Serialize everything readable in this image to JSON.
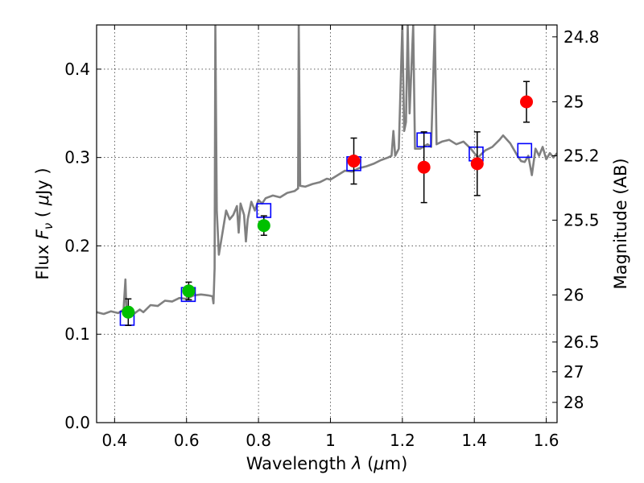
{
  "chart_data": {
    "type": "scatter",
    "xlabel": "Wavelength  λ (μm)",
    "ylabel": "Flux  F_ν  ( μJy )",
    "ylabel_parts": {
      "pre": "Flux  ",
      "sym": "F",
      "sub": "ν",
      "mid": "  ( ",
      "mu": "μ",
      "post": "Jy )"
    },
    "xlabel_parts": {
      "pre": "Wavelength  ",
      "sym": "λ",
      "mid": " (",
      "mu": "μ",
      "post": "m)"
    },
    "y2label": "Magnitude (AB)",
    "xlim": [
      0.35,
      1.63
    ],
    "ylim": [
      0.0,
      0.45
    ],
    "grid": true,
    "x_ticks": [
      {
        "value": 0.4,
        "label": "0.4"
      },
      {
        "value": 0.6,
        "label": "0.6"
      },
      {
        "value": 0.8,
        "label": "0.8"
      },
      {
        "value": 1.0,
        "label": "1"
      },
      {
        "value": 1.2,
        "label": "1.2"
      },
      {
        "value": 1.4,
        "label": "1.4"
      },
      {
        "value": 1.6,
        "label": "1.6"
      }
    ],
    "y_ticks": [
      {
        "value": 0.0,
        "label": "0.0"
      },
      {
        "value": 0.1,
        "label": "0.1"
      },
      {
        "value": 0.2,
        "label": "0.2"
      },
      {
        "value": 0.3,
        "label": "0.3"
      },
      {
        "value": 0.4,
        "label": "0.4"
      }
    ],
    "y2_ticks": [
      {
        "mag": 24.8,
        "label": "24.8"
      },
      {
        "mag": 25.0,
        "label": "25"
      },
      {
        "mag": 25.2,
        "label": "25.2"
      },
      {
        "mag": 25.5,
        "label": "25.5"
      },
      {
        "mag": 26.0,
        "label": "26"
      },
      {
        "mag": 26.5,
        "label": "26.5"
      },
      {
        "mag": 27.0,
        "label": "27"
      },
      {
        "mag": 28.0,
        "label": "28"
      }
    ],
    "series": [
      {
        "kind": "line",
        "color": "#808080",
        "points": [
          [
            0.35,
            0.125
          ],
          [
            0.37,
            0.123
          ],
          [
            0.39,
            0.126
          ],
          [
            0.41,
            0.124
          ],
          [
            0.425,
            0.128
          ],
          [
            0.43,
            0.162
          ],
          [
            0.433,
            0.126
          ],
          [
            0.45,
            0.122
          ],
          [
            0.47,
            0.128
          ],
          [
            0.48,
            0.125
          ],
          [
            0.5,
            0.133
          ],
          [
            0.52,
            0.132
          ],
          [
            0.54,
            0.138
          ],
          [
            0.56,
            0.137
          ],
          [
            0.58,
            0.141
          ],
          [
            0.6,
            0.14
          ],
          [
            0.62,
            0.144
          ],
          [
            0.64,
            0.145
          ],
          [
            0.66,
            0.144
          ],
          [
            0.672,
            0.143
          ],
          [
            0.675,
            0.135
          ],
          [
            0.678,
            0.175
          ],
          [
            0.68,
            0.45
          ],
          [
            0.684,
            0.24
          ],
          [
            0.69,
            0.19
          ],
          [
            0.7,
            0.215
          ],
          [
            0.71,
            0.24
          ],
          [
            0.72,
            0.23
          ],
          [
            0.73,
            0.235
          ],
          [
            0.74,
            0.245
          ],
          [
            0.745,
            0.215
          ],
          [
            0.75,
            0.248
          ],
          [
            0.76,
            0.235
          ],
          [
            0.765,
            0.205
          ],
          [
            0.77,
            0.23
          ],
          [
            0.78,
            0.25
          ],
          [
            0.79,
            0.24
          ],
          [
            0.8,
            0.252
          ],
          [
            0.81,
            0.248
          ],
          [
            0.82,
            0.254
          ],
          [
            0.84,
            0.257
          ],
          [
            0.86,
            0.255
          ],
          [
            0.88,
            0.26
          ],
          [
            0.9,
            0.262
          ],
          [
            0.91,
            0.265
          ],
          [
            0.912,
            0.45
          ],
          [
            0.916,
            0.268
          ],
          [
            0.93,
            0.267
          ],
          [
            0.95,
            0.27
          ],
          [
            0.97,
            0.272
          ],
          [
            0.99,
            0.276
          ],
          [
            1.0,
            0.275
          ],
          [
            1.02,
            0.28
          ],
          [
            1.04,
            0.285
          ],
          [
            1.06,
            0.284
          ],
          [
            1.08,
            0.288
          ],
          [
            1.1,
            0.29
          ],
          [
            1.12,
            0.293
          ],
          [
            1.14,
            0.297
          ],
          [
            1.16,
            0.3
          ],
          [
            1.17,
            0.302
          ],
          [
            1.175,
            0.33
          ],
          [
            1.18,
            0.302
          ],
          [
            1.19,
            0.31
          ],
          [
            1.2,
            0.45
          ],
          [
            1.205,
            0.33
          ],
          [
            1.21,
            0.34
          ],
          [
            1.215,
            0.45
          ],
          [
            1.22,
            0.35
          ],
          [
            1.23,
            0.45
          ],
          [
            1.235,
            0.31
          ],
          [
            1.25,
            0.31
          ],
          [
            1.27,
            0.315
          ],
          [
            1.28,
            0.312
          ],
          [
            1.29,
            0.45
          ],
          [
            1.295,
            0.315
          ],
          [
            1.31,
            0.318
          ],
          [
            1.33,
            0.32
          ],
          [
            1.35,
            0.315
          ],
          [
            1.37,
            0.318
          ],
          [
            1.39,
            0.31
          ],
          [
            1.41,
            0.3
          ],
          [
            1.43,
            0.308
          ],
          [
            1.45,
            0.312
          ],
          [
            1.47,
            0.32
          ],
          [
            1.48,
            0.325
          ],
          [
            1.5,
            0.316
          ],
          [
            1.52,
            0.302
          ],
          [
            1.53,
            0.296
          ],
          [
            1.54,
            0.295
          ],
          [
            1.55,
            0.302
          ],
          [
            1.56,
            0.28
          ],
          [
            1.57,
            0.31
          ],
          [
            1.58,
            0.302
          ],
          [
            1.59,
            0.312
          ],
          [
            1.6,
            0.298
          ],
          [
            1.61,
            0.305
          ],
          [
            1.62,
            0.3
          ],
          [
            1.63,
            0.305
          ]
        ]
      },
      {
        "kind": "squares",
        "color": "#0000ff",
        "points": [
          [
            0.435,
            0.118
          ],
          [
            0.605,
            0.145
          ],
          [
            0.815,
            0.24
          ],
          [
            1.065,
            0.293
          ],
          [
            1.26,
            0.32
          ],
          [
            1.405,
            0.304
          ],
          [
            1.54,
            0.308
          ]
        ]
      },
      {
        "kind": "points",
        "color": "#00c000",
        "points": [
          {
            "x": 0.438,
            "y": 0.125,
            "err": 0.015
          },
          {
            "x": 0.606,
            "y": 0.149,
            "err": 0.01
          },
          {
            "x": 0.815,
            "y": 0.223,
            "err": 0.011
          }
        ]
      },
      {
        "kind": "points",
        "color": "#ff0000",
        "points": [
          {
            "x": 1.065,
            "y": 0.296,
            "err": 0.026
          },
          {
            "x": 1.26,
            "y": 0.289,
            "err": 0.04
          },
          {
            "x": 1.408,
            "y": 0.293,
            "err": 0.036
          },
          {
            "x": 1.545,
            "y": 0.363,
            "err": 0.023
          }
        ]
      }
    ]
  }
}
